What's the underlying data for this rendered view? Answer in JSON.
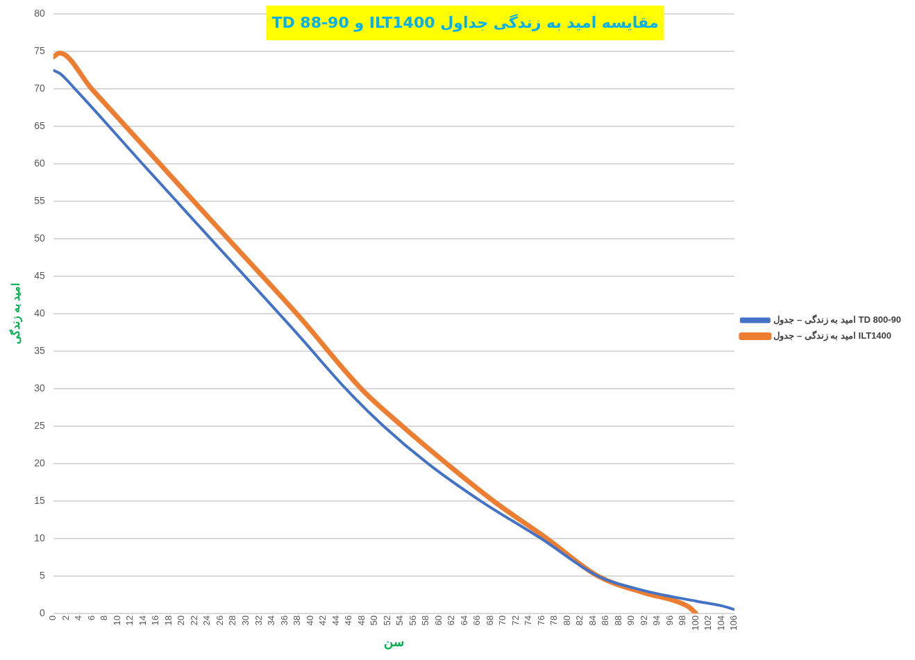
{
  "chart_data": {
    "type": "line",
    "title": "مقایسه امید به زندگی جداول ILT1400 و TD 88-90",
    "xlabel": "سن",
    "ylabel": "امید به زندگی",
    "xlim": [
      0,
      106
    ],
    "xticks": [
      0,
      2,
      4,
      6,
      8,
      10,
      12,
      14,
      16,
      18,
      20,
      22,
      24,
      26,
      28,
      30,
      32,
      34,
      36,
      38,
      40,
      42,
      44,
      46,
      48,
      50,
      52,
      54,
      56,
      58,
      60,
      62,
      64,
      66,
      68,
      70,
      72,
      74,
      76,
      78,
      80,
      82,
      84,
      86,
      88,
      90,
      92,
      94,
      96,
      98,
      100,
      102,
      104,
      106
    ],
    "ylim": [
      0,
      80
    ],
    "yticks": [
      0,
      5,
      10,
      15,
      20,
      25,
      30,
      35,
      40,
      45,
      50,
      55,
      60,
      65,
      70,
      75,
      80
    ],
    "grid": "y",
    "legend": "right",
    "marker": "none",
    "line_style": "solid",
    "series": [
      {
        "name": "امید به زندگی – جدول TD 800-90",
        "color": "#4472c4",
        "x": [
          0,
          1,
          3.4,
          13.9,
          24.5,
          38.2,
          45.5,
          51.4,
          58.3,
          66.5,
          75.9,
          84.7,
          92.1,
          100.2,
          104,
          106
        ],
        "values": [
          72.5,
          72.1,
          70,
          60,
          50,
          37.1,
          30,
          25,
          20,
          15,
          10,
          5,
          3,
          1.6,
          1,
          0.5
        ]
      },
      {
        "name": "امید به زندگی – جدول ILT1400",
        "color": "#ed7d31",
        "x": [
          0,
          1,
          6,
          27.2,
          38.2,
          47.9,
          54.3,
          61.2,
          68.5,
          76.8,
          84.7,
          92.1,
          97,
          99,
          100
        ],
        "values": [
          74.3,
          74.8,
          70,
          50,
          39.7,
          30,
          25,
          20,
          15,
          10,
          5,
          2.7,
          1.6,
          0.8,
          0
        ]
      }
    ]
  }
}
